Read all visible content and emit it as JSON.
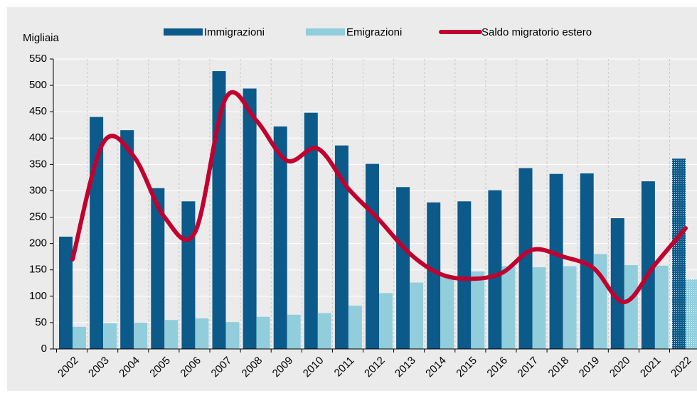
{
  "chart_data": {
    "type": "bar_line",
    "y_label": "Migliaia",
    "categories": [
      "2002",
      "2003",
      "2004",
      "2005",
      "2006",
      "2007",
      "2008",
      "2009",
      "2010",
      "2011",
      "2012",
      "2013",
      "2014",
      "2015",
      "2016",
      "2017",
      "2018",
      "2019",
      "2020",
      "2021",
      "2022"
    ],
    "series": [
      {
        "name": "Immigrazioni",
        "type": "bar",
        "color": "#0b5a8a",
        "values": [
          213,
          440,
          415,
          305,
          280,
          527,
          494,
          422,
          448,
          386,
          351,
          307,
          278,
          280,
          301,
          343,
          332,
          333,
          248,
          318,
          361
        ]
      },
      {
        "name": "Emigrazioni",
        "type": "bar",
        "color": "#92cddc",
        "values": [
          42,
          49,
          50,
          55,
          58,
          51,
          61,
          65,
          68,
          82,
          106,
          126,
          136,
          147,
          157,
          155,
          157,
          180,
          159,
          158,
          132
        ]
      },
      {
        "name": "Saldo migratorio estero",
        "type": "line",
        "color": "#c0002f",
        "values": [
          170,
          391,
          365,
          250,
          222,
          476,
          433,
          357,
          380,
          304,
          245,
          181,
          142,
          133,
          144,
          188,
          175,
          153,
          89,
          160,
          229
        ]
      }
    ],
    "ylim": [
      0,
      550
    ],
    "yticks": [
      0,
      50,
      100,
      150,
      200,
      250,
      300,
      350,
      400,
      450,
      500,
      550
    ],
    "grid": true
  }
}
